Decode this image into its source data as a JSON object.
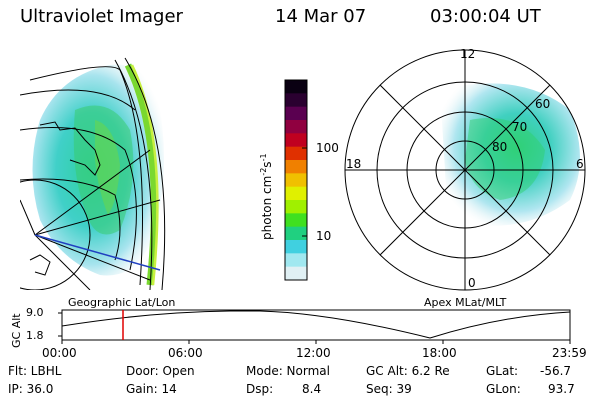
{
  "header": {
    "instrument": "Ultraviolet Imager",
    "date": "14 Mar 07",
    "time": "03:00:04 UT"
  },
  "colorbar": {
    "unit_label_parts": [
      "photon cm",
      "-2",
      "s",
      "-1"
    ],
    "ticks": [
      "100",
      "10"
    ],
    "colors": [
      "#0a0012",
      "#2a0030",
      "#5a0050",
      "#900040",
      "#c00020",
      "#e03000",
      "#f08000",
      "#f0c000",
      "#e0f000",
      "#a0f000",
      "#40e020",
      "#20d080",
      "#40d0e0",
      "#a0e8f0",
      "#e0f0f4"
    ]
  },
  "polar_plot": {
    "mlt_labels": [
      "12",
      "18",
      "6",
      "0"
    ],
    "mlat_labels": [
      "60",
      "70",
      "80"
    ]
  },
  "timeline": {
    "left_label": "Geographic Lat/Lon",
    "right_label": "Apex MLat/MLT",
    "y_axis_label": "GC Alt",
    "y_ticks": [
      "9.0",
      "1.8"
    ],
    "x_ticks": [
      "00:00",
      "06:00",
      "12:00",
      "18:00",
      "23:59"
    ],
    "current_time_marker_color": "#e00000"
  },
  "status": {
    "flt": "Flt: LBHL",
    "ip": "IP: 36.0",
    "door": "Door: Open",
    "gain": "Gain: 14",
    "mode": "Mode: Normal",
    "dsp_label": "Dsp:",
    "dsp_value": "8.4",
    "gc_alt": "GC Alt: 6.2 Re",
    "seq": "Seq: 39",
    "glat_label": "GLat:",
    "glat_value": "-56.7",
    "glon_label": "GLon:",
    "glon_value": "93.7"
  }
}
